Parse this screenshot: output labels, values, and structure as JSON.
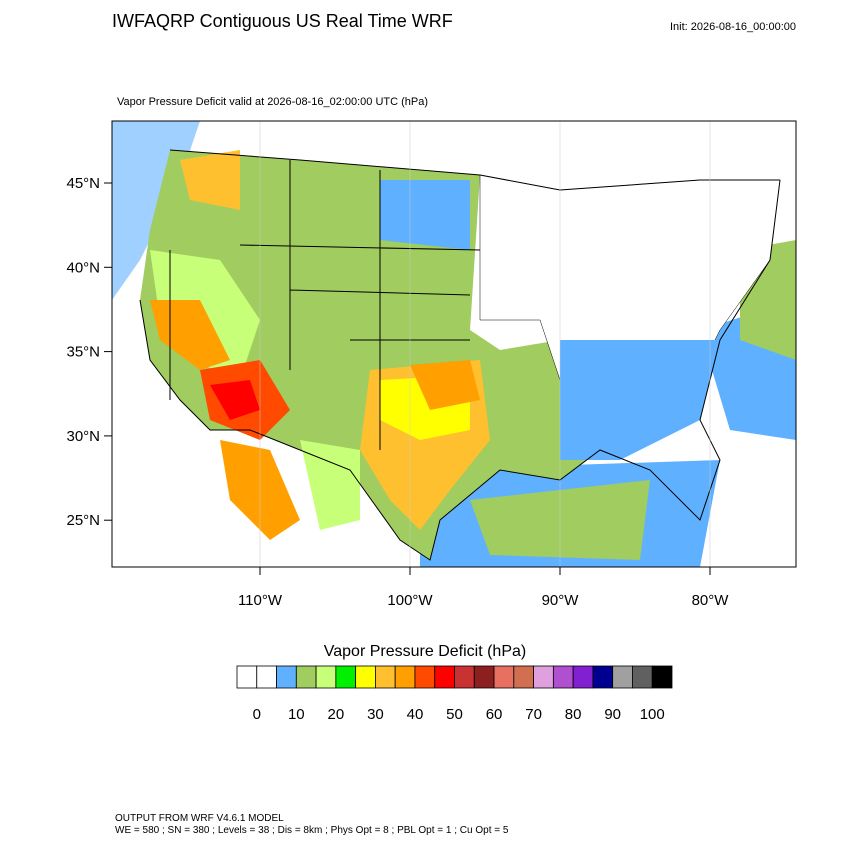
{
  "header": {
    "title": "IWFAQRP Contiguous US Real Time WRF",
    "init": "Init: 2026-08-16_00:00:00"
  },
  "map": {
    "subtitle": "Vapor Pressure Deficit valid at 2026-08-16_02:00:00 UTC   (hPa)",
    "lat_labels": [
      "45°N",
      "40°N",
      "35°N",
      "30°N",
      "25°N"
    ],
    "lon_labels": [
      "110°W",
      "100°W",
      "90°W",
      "80°W"
    ]
  },
  "colorbar": {
    "title": "Vapor Pressure Deficit  (hPa)",
    "labels": [
      "0",
      "10",
      "20",
      "30",
      "40",
      "50",
      "60",
      "70",
      "80",
      "90",
      "100"
    ],
    "colors": [
      "#ffffff",
      "#ffffff",
      "#5fb0ff",
      "#a0cc60",
      "#c8ff78",
      "#00f000",
      "#ffff00",
      "#ffc030",
      "#ffa000",
      "#ff4a00",
      "#ff0000",
      "#c83232",
      "#8c2020",
      "#e87060",
      "#d07050",
      "#e0a0e0",
      "#b050d0",
      "#8020d0",
      "#000090",
      "#a0a0a0",
      "#606060",
      "#000000"
    ]
  },
  "footer": {
    "line1": "OUTPUT FROM WRF V4.6.1 MODEL",
    "line2": "WE = 580 ; SN = 380 ; Levels = 38 ; Dis = 8km ; Phys Opt = 8 ; PBL Opt = 1 ; Cu Opt = 5"
  }
}
